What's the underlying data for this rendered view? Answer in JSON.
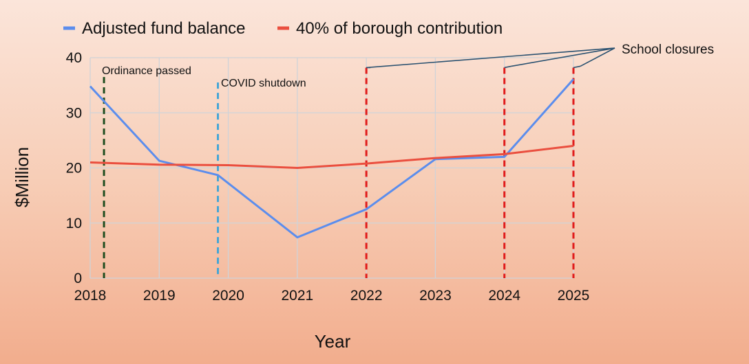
{
  "chart_data": {
    "type": "line",
    "title": "",
    "xlabel": "Year",
    "ylabel": "$Million",
    "x": [
      2018,
      2019,
      2020,
      2021,
      2022,
      2023,
      2024,
      2025
    ],
    "xlim": [
      2018,
      2025
    ],
    "ylim": [
      0,
      40
    ],
    "yticks": [
      0,
      10,
      20,
      30,
      40
    ],
    "grid": true,
    "legend_position": "top",
    "series": [
      {
        "name": "Adjusted fund balance",
        "color": "#5b8ded",
        "points": [
          [
            2018,
            34.8
          ],
          [
            2019,
            21.3
          ],
          [
            2019.85,
            18.7
          ],
          [
            2021,
            7.4
          ],
          [
            2022,
            12.5
          ],
          [
            2023,
            21.6
          ],
          [
            2024,
            22.0
          ],
          [
            2025,
            36.1
          ]
        ]
      },
      {
        "name": "40% of borough contribution",
        "color": "#ea4f3f",
        "points": [
          [
            2018,
            21.0
          ],
          [
            2019,
            20.6
          ],
          [
            2020,
            20.5
          ],
          [
            2021,
            20.0
          ],
          [
            2022,
            20.8
          ],
          [
            2023,
            21.8
          ],
          [
            2024,
            22.5
          ],
          [
            2025,
            24.0
          ]
        ]
      }
    ],
    "vertical_markers": [
      {
        "x": 2018.2,
        "top": 36.5,
        "color": "#1f4d1f",
        "label": "Ordinance passed"
      },
      {
        "x": 2019.85,
        "top": 35.5,
        "color": "#45a6d6",
        "label": "COVID shutdown"
      },
      {
        "x": 2022,
        "top": 38.2,
        "color": "#e01b1b",
        "label": ""
      },
      {
        "x": 2024,
        "top": 38.2,
        "color": "#e01b1b",
        "label": ""
      },
      {
        "x": 2025,
        "top": 38.2,
        "color": "#e01b1b",
        "label": ""
      }
    ],
    "callout": {
      "label": "School closures",
      "color": "#2a5170",
      "targets": [
        2022,
        2024,
        2025
      ]
    }
  }
}
